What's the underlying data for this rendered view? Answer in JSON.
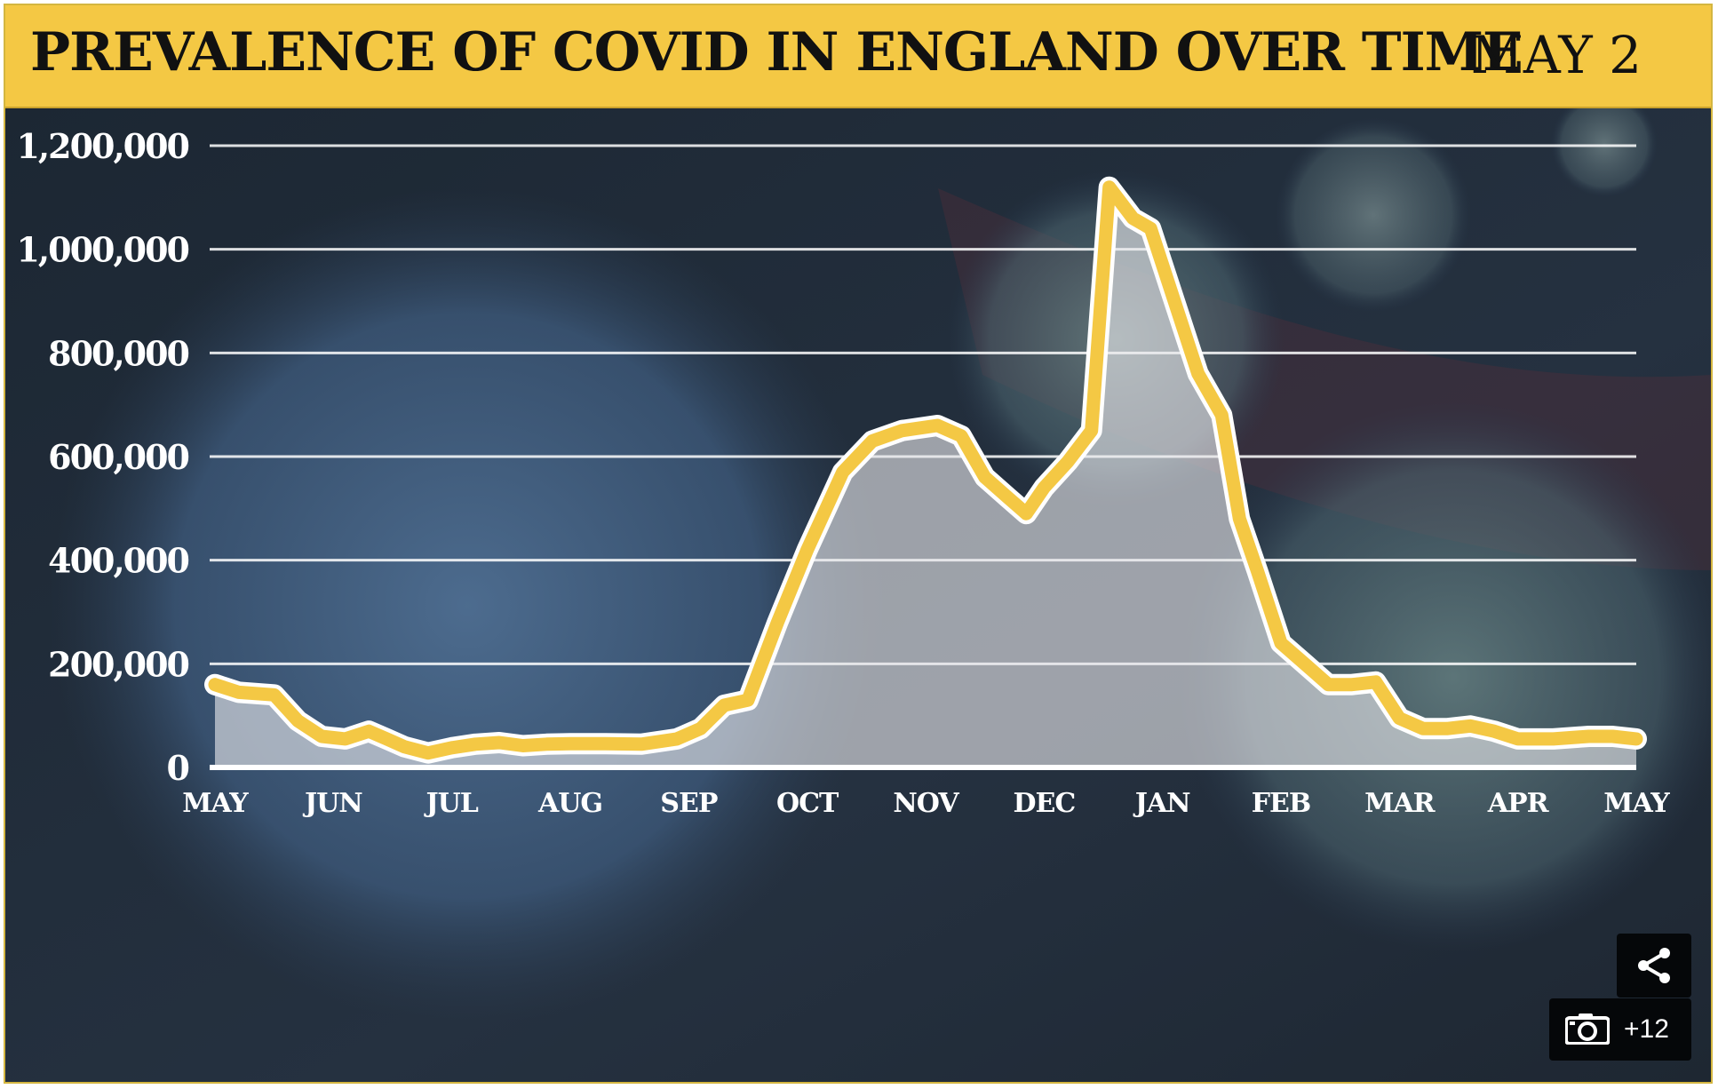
{
  "header": {
    "title": "PREVALENCE OF COVID IN ENGLAND OVER TIME",
    "date": "MAY 2"
  },
  "colors": {
    "header_bg": "#f4c844",
    "line": "#f4c844",
    "background": "#1f2a36",
    "gridline": "#ffffff",
    "area_fill": "#e9e9ec"
  },
  "overlay": {
    "photo_count": "+12",
    "camera_icon": "camera-icon",
    "share_icon": "share-icon"
  },
  "chart_data": {
    "type": "area",
    "title": "PREVALENCE OF COVID IN ENGLAND OVER TIME",
    "xlabel": "",
    "ylabel": "",
    "ylim": [
      0,
      1200000
    ],
    "grid": true,
    "y_ticks": [
      0,
      200000,
      400000,
      600000,
      800000,
      1000000,
      1200000
    ],
    "y_tick_labels": [
      "0",
      "200,000",
      "400,000",
      "600,000",
      "800,000",
      "1,000,000",
      "1,200,000"
    ],
    "x_ticks": [
      0,
      1,
      2,
      3,
      4,
      5,
      6,
      7,
      8,
      9,
      10,
      11,
      12
    ],
    "x_tick_labels": [
      "MAY",
      "JUN",
      "JUL",
      "AUG",
      "SEP",
      "OCT",
      "NOV",
      "DEC",
      "JAN",
      "FEB",
      "MAR",
      "APR",
      "MAY"
    ],
    "x": [
      0.0,
      0.2,
      0.5,
      0.7,
      0.9,
      1.1,
      1.3,
      1.45,
      1.6,
      1.8,
      2.0,
      2.2,
      2.4,
      2.6,
      2.8,
      3.0,
      3.3,
      3.6,
      3.9,
      4.1,
      4.3,
      4.5,
      4.75,
      5.0,
      5.3,
      5.55,
      5.8,
      6.1,
      6.3,
      6.5,
      6.7,
      6.85,
      7.0,
      7.2,
      7.4,
      7.55,
      7.75,
      7.9,
      8.1,
      8.3,
      8.5,
      8.65,
      8.8,
      9.0,
      9.2,
      9.4,
      9.6,
      9.8,
      10.0,
      10.2,
      10.4,
      10.6,
      10.8,
      11.0,
      11.3,
      11.6,
      11.8,
      12.0
    ],
    "y": [
      160000,
      145000,
      140000,
      90000,
      60000,
      55000,
      70000,
      55000,
      40000,
      28000,
      38000,
      45000,
      48000,
      42000,
      45000,
      46000,
      46000,
      45000,
      55000,
      75000,
      120000,
      130000,
      280000,
      420000,
      570000,
      630000,
      650000,
      660000,
      640000,
      560000,
      520000,
      490000,
      540000,
      590000,
      650000,
      1120000,
      1060000,
      1040000,
      900000,
      760000,
      680000,
      480000,
      380000,
      240000,
      200000,
      160000,
      160000,
      165000,
      95000,
      75000,
      75000,
      80000,
      70000,
      55000,
      55000,
      60000,
      60000,
      55000
    ]
  }
}
